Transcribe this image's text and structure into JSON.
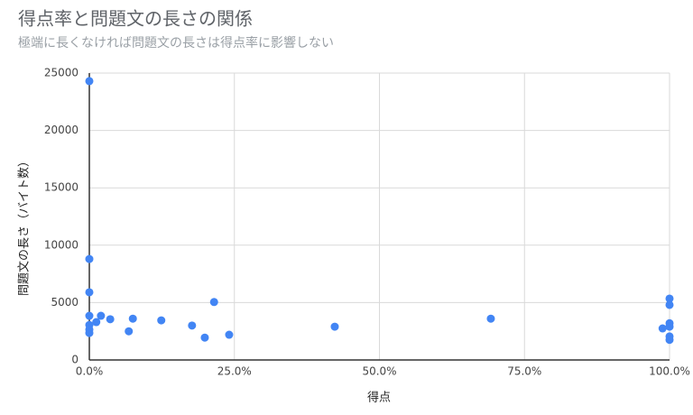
{
  "chart_data": {
    "type": "scatter",
    "title": "得点率と問題文の長さの関係",
    "subtitle": "極端に長くなければ問題文の長さは得点率に影響しない",
    "x_label": "得点",
    "y_label": "問題文の長さ（バイト数）",
    "color": "#4285f4",
    "grid": true,
    "x": [
      0,
      0,
      0,
      0,
      0,
      0,
      0,
      1.2,
      2.0,
      3.6,
      6.8,
      7.5,
      12.4,
      17.7,
      19.9,
      21.5,
      24.1,
      42.3,
      69.2,
      100,
      100,
      100,
      100,
      100,
      100,
      98.8
    ],
    "values": [
      24300,
      8800,
      5900,
      3850,
      3050,
      2650,
      2350,
      3300,
      3850,
      3550,
      2500,
      3600,
      3450,
      3000,
      1950,
      5050,
      2200,
      2900,
      3600,
      5350,
      4800,
      3200,
      2900,
      2050,
      1750,
      2750
    ],
    "xlim": [
      0,
      100
    ],
    "xticks": [
      {
        "value": 0,
        "label": "0.0%"
      },
      {
        "value": 25,
        "label": "25.0%"
      },
      {
        "value": 50,
        "label": "50.0%"
      },
      {
        "value": 75,
        "label": "75.0%"
      },
      {
        "value": 100,
        "label": "100.0%"
      }
    ],
    "ylim": [
      0,
      25000
    ],
    "yticks": [
      0,
      5000,
      10000,
      15000,
      20000,
      25000
    ]
  }
}
